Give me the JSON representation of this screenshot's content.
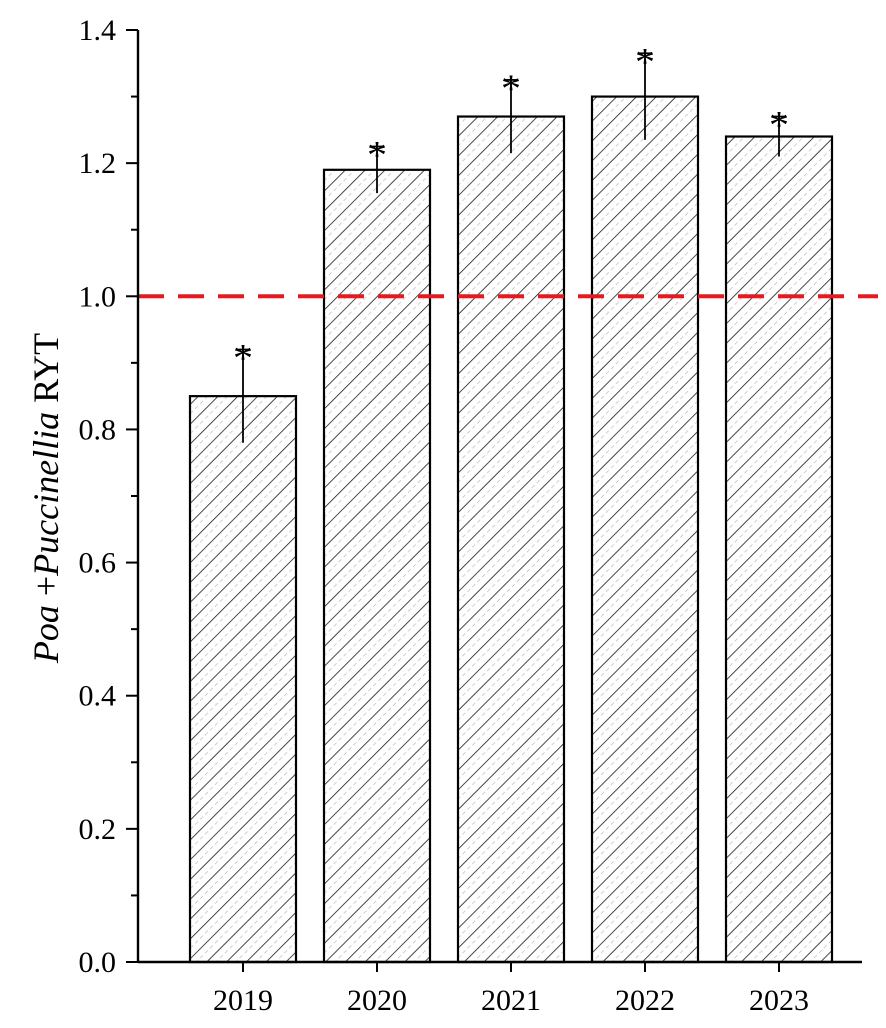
{
  "chart_data": {
    "type": "bar",
    "categories": [
      "2019",
      "2020",
      "2021",
      "2022",
      "2023"
    ],
    "values": [
      0.85,
      1.19,
      1.27,
      1.3,
      1.24
    ],
    "errors": [
      0.07,
      0.035,
      0.055,
      0.065,
      0.03
    ],
    "significance": [
      "*",
      "*",
      "*",
      "*",
      "*"
    ],
    "ylabel_parts": [
      "Poa",
      " +",
      "Puccinellia",
      "  RYT"
    ],
    "ylim": [
      0.0,
      1.4
    ],
    "yticks": [
      "0.0",
      "0.2",
      "0.4",
      "0.6",
      "0.8",
      "1.0",
      "1.2",
      "1.4"
    ],
    "reference_line": {
      "value": 1.0,
      "color": "#e8191c",
      "style": "dashed"
    },
    "bar_fill": "hatched",
    "grid": false,
    "legend": "none"
  }
}
